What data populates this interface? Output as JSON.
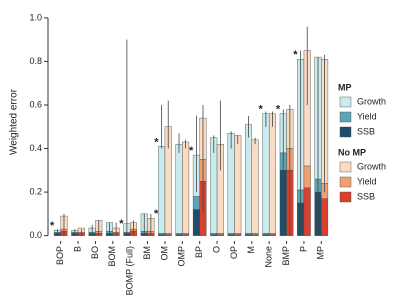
{
  "chart_data": {
    "type": "grouped-stacked-bar",
    "y_label": "Weighted error",
    "categories": [
      "BOP",
      "B",
      "BO",
      "BOM",
      "BOMP (Full)",
      "BM",
      "OM",
      "OMP",
      "BP",
      "O",
      "OP",
      "M",
      "None",
      "BMP",
      "P",
      "MP"
    ],
    "ylim": [
      -0.02,
      1.05
    ],
    "yticks": [
      {
        "value": 0,
        "label": "0.0"
      },
      0.2,
      0.4,
      0.6,
      0.8,
      {
        "value": 1,
        "label": "1.0"
      }
    ],
    "groups": [
      {
        "name": "MP",
        "series": [
          {
            "name": "Growth",
            "color": "#c9ebee",
            "values": [
              0.01,
              0.01,
              0.02,
              0.04,
              0.04,
              0.08,
              0.4,
              0.41,
              0.19,
              0.44,
              0.46,
              0.5,
              0.55,
              0.18,
              0.6,
              0.56
            ]
          },
          {
            "name": "Yield",
            "color": "#5aa6b8",
            "values": [
              0.005,
              0.005,
              0.005,
              0.01,
              0.005,
              0.01,
              0.005,
              0.005,
              0.06,
              0.005,
              0.005,
              0.005,
              0.005,
              0.08,
              0.06,
              0.06
            ]
          },
          {
            "name": "SSB",
            "color": "#1f4e6b",
            "values": [
              0.01,
              0.01,
              0.01,
              0.01,
              0.01,
              0.01,
              0.005,
              0.005,
              0.12,
              0.005,
              0.005,
              0.005,
              0.005,
              0.3,
              0.15,
              0.2
            ]
          }
        ],
        "error_low": [
          0,
          0,
          0,
          0,
          0,
          0,
          0.4,
          0.38,
          0.2,
          0.38,
          0.4,
          0.45,
          0.5,
          0,
          0,
          0
        ],
        "error_high": [
          0.03,
          0.03,
          0.05,
          0.06,
          0.9,
          0.1,
          0.6,
          0.47,
          0.55,
          0.46,
          0.48,
          0.55,
          0.57,
          0.58,
          0.85,
          0.82
        ],
        "markers": [
          "*",
          null,
          null,
          null,
          null,
          null,
          "*",
          null,
          "*",
          null,
          null,
          null,
          "*",
          "*",
          "*",
          null
        ]
      },
      {
        "name": "No MP",
        "series": [
          {
            "name": "Growth",
            "color": "#fadcc4",
            "values": [
              0.06,
              0.02,
              0.05,
              0.02,
              0.03,
              0.06,
              0.49,
              0.42,
              0.19,
              0.41,
              0.45,
              0.43,
              0.55,
              0.18,
              0.53,
              0.57
            ]
          },
          {
            "name": "Yield",
            "color": "#f0a070",
            "values": [
              0.01,
              0.005,
              0.01,
              0.005,
              0.01,
              0.01,
              0.005,
              0.005,
              0.1,
              0.005,
              0.005,
              0.005,
              0.005,
              0.1,
              0.1,
              0.07
            ]
          },
          {
            "name": "SSB",
            "color": "#d9402e",
            "values": [
              0.02,
              0.01,
              0.01,
              0.01,
              0.02,
              0.01,
              0.005,
              0.005,
              0.25,
              0.005,
              0.005,
              0.005,
              0.005,
              0.3,
              0.22,
              0.17
            ]
          }
        ],
        "error_low": [
          0,
          0,
          0,
          0,
          0,
          0,
          0.4,
          0.4,
          0.1,
          0.3,
          0.42,
          0.42,
          0.5,
          0,
          0.6,
          0.2
        ],
        "error_high": [
          0.1,
          0.03,
          0.07,
          0.06,
          0.07,
          0.1,
          0.62,
          0.44,
          0.6,
          0.62,
          0.46,
          0.45,
          0.57,
          0.6,
          0.96,
          0.83
        ],
        "markers": [
          null,
          null,
          null,
          "*",
          null,
          "*",
          null,
          null,
          null,
          null,
          null,
          null,
          null,
          null,
          null,
          null
        ]
      }
    ]
  }
}
